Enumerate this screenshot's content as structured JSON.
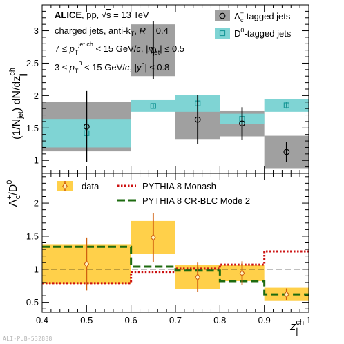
{
  "watermark": "ALI-PUB-532888",
  "colors": {
    "lambda_fill": "#a0a0a0",
    "d0_fill": "#7fd4d4",
    "ratio_fill": "#ffd04a",
    "ratio_marker": "#d05f0f",
    "monash": "#cc1111",
    "crblc": "#1e6b10"
  },
  "chart_data": [
    {
      "type": "scatter",
      "panel": "top",
      "annotations": [
        {
          "prefix": "ALICE",
          "text": ", pp, √s = 13 TeV"
        },
        {
          "text": "charged jets, anti-kT, R = 0.4"
        },
        {
          "text": "7 ≤ pT(jet ch) < 15 GeV/c, |ηjet| ≤ 0.5"
        },
        {
          "text": "3 ≤ pT(h) < 15 GeV/c, |yh| ≤ 0.8"
        }
      ],
      "ylabel": "(1/Njet) dN/dz∥(ch)",
      "ylim": [
        0.8,
        3.4
      ],
      "yticks": [
        1,
        1.5,
        2,
        2.5,
        3
      ],
      "xlim": [
        0.4,
        1.0
      ],
      "legend_position": "top-right",
      "series": [
        {
          "name": "Λc+-tagged jets",
          "marker": "circle",
          "x": [
            0.5,
            0.65,
            0.75,
            0.85,
            0.95
          ],
          "bin_edges": [
            [
              0.4,
              0.6
            ],
            [
              0.6,
              0.7
            ],
            [
              0.7,
              0.8
            ],
            [
              0.8,
              0.9
            ],
            [
              0.9,
              1.0
            ]
          ],
          "y": [
            1.52,
            2.7,
            1.63,
            1.57,
            1.13
          ],
          "stat_err": [
            0.55,
            0.45,
            0.38,
            0.25,
            0.15
          ],
          "sys_err": [
            0.38,
            0.4,
            0.3,
            0.2,
            0.25
          ]
        },
        {
          "name": "D0-tagged jets",
          "marker": "square",
          "x": [
            0.5,
            0.65,
            0.75,
            0.85,
            0.95
          ],
          "bin_edges": [
            [
              0.4,
              0.6
            ],
            [
              0.6,
              0.7
            ],
            [
              0.7,
              0.8
            ],
            [
              0.8,
              0.9
            ],
            [
              0.9,
              1.0
            ]
          ],
          "y": [
            1.42,
            1.84,
            1.88,
            1.64,
            1.85
          ],
          "stat_err": [
            0.04,
            0.04,
            0.05,
            0.04,
            0.05
          ],
          "sys_err": [
            0.22,
            0.09,
            0.13,
            0.08,
            0.1
          ]
        }
      ]
    },
    {
      "type": "scatter",
      "panel": "bottom",
      "ylabel": "Λc+/D0",
      "xlabel": "z∥(ch)",
      "ylim": [
        0.35,
        2.45
      ],
      "yticks": [
        0.5,
        1,
        1.5,
        2
      ],
      "xlim": [
        0.4,
        1.0
      ],
      "xticks": [
        0.4,
        0.5,
        0.6,
        0.7,
        0.8,
        0.9,
        1.0
      ],
      "reference_line": 1,
      "legend_position": "top",
      "series": [
        {
          "name": "data",
          "marker": "diamond",
          "x": [
            0.5,
            0.65,
            0.75,
            0.85,
            0.95
          ],
          "bin_edges": [
            [
              0.4,
              0.6
            ],
            [
              0.6,
              0.7
            ],
            [
              0.7,
              0.8
            ],
            [
              0.8,
              0.9
            ],
            [
              0.9,
              1.0
            ]
          ],
          "y": [
            1.08,
            1.48,
            0.88,
            0.94,
            0.62
          ],
          "stat_err": [
            0.4,
            0.37,
            0.22,
            0.18,
            0.09
          ],
          "sys_err": [
            0.3,
            0.25,
            0.18,
            0.12,
            0.1
          ]
        },
        {
          "name": "PYTHIA 8 Monash",
          "style": "dotted-step",
          "bin_edges": [
            0.4,
            0.6,
            0.7,
            0.8,
            0.9,
            1.0
          ],
          "y": [
            0.79,
            0.96,
            1.01,
            1.07,
            1.27
          ]
        },
        {
          "name": "PYTHIA 8 CR-BLC Mode 2",
          "style": "dashed-step",
          "bin_edges": [
            0.4,
            0.6,
            0.7,
            0.8,
            0.9,
            1.0
          ],
          "y": [
            1.34,
            1.04,
            0.98,
            0.82,
            0.62
          ]
        }
      ]
    }
  ]
}
